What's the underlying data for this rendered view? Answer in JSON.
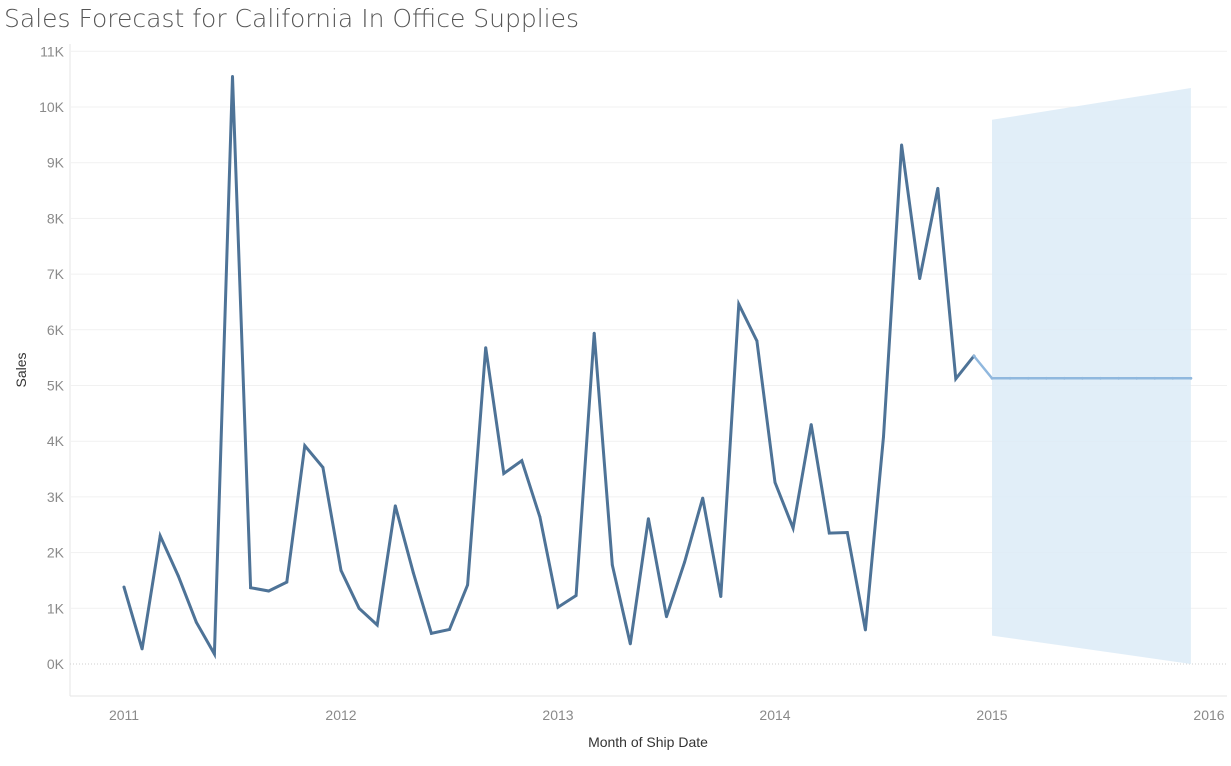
{
  "chart_data": {
    "type": "line",
    "title": "Sales Forecast for California In Office Supplies",
    "xlabel": "Month of Ship Date",
    "ylabel": "Sales",
    "x_ticks": [
      "2011",
      "2012",
      "2013",
      "2014",
      "2015",
      "2016"
    ],
    "y_ticks": [
      "0K",
      "1K",
      "2K",
      "3K",
      "4K",
      "5K",
      "6K",
      "7K",
      "8K",
      "9K",
      "10K",
      "11K"
    ],
    "ylim": [
      0,
      11000
    ],
    "grid": true,
    "legend": "none",
    "colors": {
      "actual": "#4e7397",
      "forecast": "#90b8de",
      "band": "#dcebf7",
      "zero_line": "#cfcfcf"
    },
    "series": [
      {
        "role": "actual",
        "x": [
          "2011-01",
          "2011-02",
          "2011-03",
          "2011-04",
          "2011-05",
          "2011-06",
          "2011-07",
          "2011-08",
          "2011-09",
          "2011-10",
          "2011-11",
          "2011-12",
          "2012-01",
          "2012-02",
          "2012-03",
          "2012-04",
          "2012-05",
          "2012-06",
          "2012-07",
          "2012-08",
          "2012-09",
          "2012-10",
          "2012-11",
          "2012-12",
          "2013-01",
          "2013-02",
          "2013-03",
          "2013-04",
          "2013-05",
          "2013-06",
          "2013-07",
          "2013-08",
          "2013-09",
          "2013-10",
          "2013-11",
          "2013-12",
          "2014-01",
          "2014-02",
          "2014-03",
          "2014-04",
          "2014-05",
          "2014-06",
          "2014-07",
          "2014-08",
          "2014-09",
          "2014-10",
          "2014-11",
          "2014-12"
        ],
        "values": [
          1380,
          270,
          2300,
          1580,
          750,
          180,
          10550,
          1370,
          1310,
          1470,
          3920,
          3530,
          1680,
          1000,
          700,
          2840,
          1640,
          550,
          620,
          1420,
          5680,
          3420,
          3650,
          2640,
          1020,
          1230,
          5940,
          1780,
          360,
          2610,
          850,
          1830,
          2980,
          1210,
          6460,
          5800,
          3260,
          2440,
          4300,
          2350,
          2360,
          610,
          4080,
          9320,
          6920,
          8540,
          5120,
          5530
        ]
      },
      {
        "role": "forecast",
        "x": [
          "2014-12",
          "2015-01",
          "2015-02",
          "2015-03",
          "2015-04",
          "2015-05",
          "2015-06",
          "2015-07",
          "2015-08",
          "2015-09",
          "2015-10",
          "2015-11",
          "2015-12"
        ],
        "values": [
          5530,
          5130,
          5130,
          5130,
          5130,
          5130,
          5130,
          5130,
          5130,
          5130,
          5130,
          5130,
          5130
        ]
      }
    ],
    "forecast_band": {
      "x": [
        "2015-01",
        "2015-12"
      ],
      "upper": [
        9770,
        10340
      ],
      "lower": [
        510,
        0
      ]
    }
  }
}
